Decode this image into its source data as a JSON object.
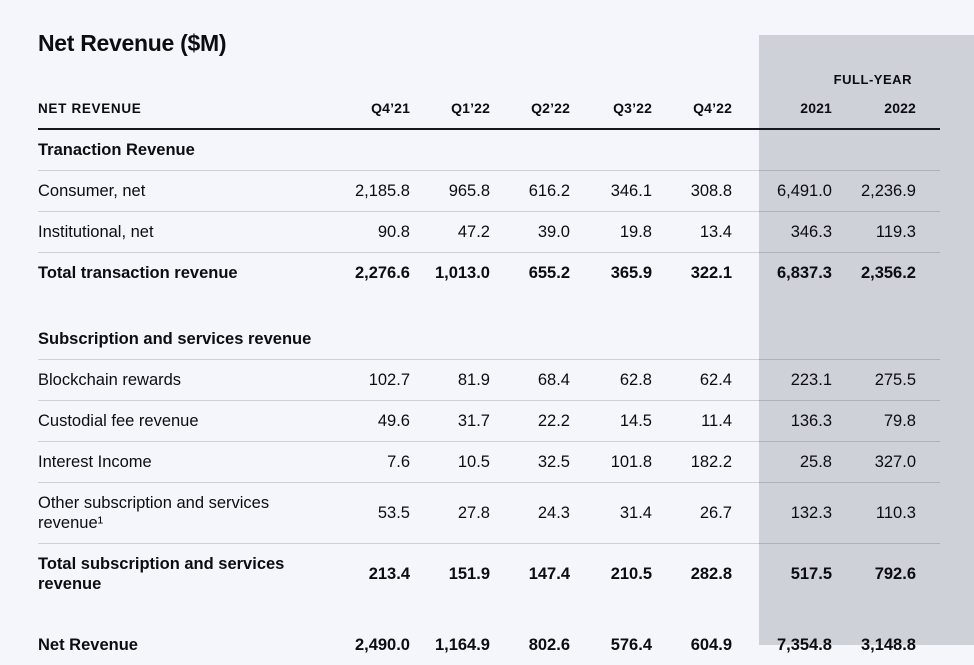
{
  "title": "Net Revenue ($M)",
  "colors": {
    "page_bg": "#f4f6fb",
    "full_year_band_bg": "#ced1d8",
    "text": "#0b0d12",
    "header_rule": "#16181c"
  },
  "table": {
    "label_header": "NET REVENUE",
    "group_header": "FULL-YEAR",
    "columns": [
      "Q4’21",
      "Q1’22",
      "Q2’22",
      "Q3’22",
      "Q4’22",
      "2021",
      "2022"
    ],
    "sections": [
      {
        "header": "Tranaction Revenue",
        "rows": [
          {
            "label": "Consumer, net",
            "emphasis": false,
            "values": [
              "2,185.8",
              "965.8",
              "616.2",
              "346.1",
              "308.8",
              "6,491.0",
              "2,236.9"
            ]
          },
          {
            "label": "Institutional, net",
            "emphasis": false,
            "values": [
              "90.8",
              "47.2",
              "39.0",
              "19.8",
              "13.4",
              "346.3",
              "119.3"
            ]
          },
          {
            "label": "Total transaction revenue",
            "emphasis": true,
            "values": [
              "2,276.6",
              "1,013.0",
              "655.2",
              "365.9",
              "322.1",
              "6,837.3",
              "2,356.2"
            ]
          }
        ]
      },
      {
        "header": "Subscription and services revenue",
        "rows": [
          {
            "label": "Blockchain rewards",
            "emphasis": false,
            "values": [
              "102.7",
              "81.9",
              "68.4",
              "62.8",
              "62.4",
              "223.1",
              "275.5"
            ]
          },
          {
            "label": "Custodial fee revenue",
            "emphasis": false,
            "values": [
              "49.6",
              "31.7",
              "22.2",
              "14.5",
              "11.4",
              "136.3",
              "79.8"
            ]
          },
          {
            "label": "Interest Income",
            "emphasis": false,
            "values": [
              "7.6",
              "10.5",
              "32.5",
              "101.8",
              "182.2",
              "25.8",
              "327.0"
            ]
          },
          {
            "label": "Other subscription and services revenue¹",
            "emphasis": false,
            "values": [
              "53.5",
              "27.8",
              "24.3",
              "31.4",
              "26.7",
              "132.3",
              "110.3"
            ]
          },
          {
            "label": "Total subscription and services revenue",
            "emphasis": true,
            "values": [
              "213.4",
              "151.9",
              "147.4",
              "210.5",
              "282.8",
              "517.5",
              "792.6"
            ]
          }
        ]
      },
      {
        "header": null,
        "rows": [
          {
            "label": "Net Revenue",
            "emphasis": true,
            "values": [
              "2,490.0",
              "1,164.9",
              "802.6",
              "576.4",
              "604.9",
              "7,354.8",
              "3,148.8"
            ]
          }
        ]
      }
    ]
  },
  "chart_data": {
    "type": "table",
    "title": "Net Revenue ($M)",
    "units": "USD millions",
    "column_group_label": "FULL-YEAR applies to last two columns",
    "columns": [
      "Q4'21",
      "Q1'22",
      "Q2'22",
      "Q3'22",
      "Q4'22",
      "FY 2021",
      "FY 2022"
    ],
    "series": [
      {
        "name": "Consumer, net",
        "values": [
          2185.8,
          965.8,
          616.2,
          346.1,
          308.8,
          6491.0,
          2236.9
        ]
      },
      {
        "name": "Institutional, net",
        "values": [
          90.8,
          47.2,
          39.0,
          19.8,
          13.4,
          346.3,
          119.3
        ]
      },
      {
        "name": "Total transaction revenue",
        "values": [
          2276.6,
          1013.0,
          655.2,
          365.9,
          322.1,
          6837.3,
          2356.2
        ]
      },
      {
        "name": "Blockchain rewards",
        "values": [
          102.7,
          81.9,
          68.4,
          62.8,
          62.4,
          223.1,
          275.5
        ]
      },
      {
        "name": "Custodial fee revenue",
        "values": [
          49.6,
          31.7,
          22.2,
          14.5,
          11.4,
          136.3,
          79.8
        ]
      },
      {
        "name": "Interest Income",
        "values": [
          7.6,
          10.5,
          32.5,
          101.8,
          182.2,
          25.8,
          327.0
        ]
      },
      {
        "name": "Other subscription and services revenue",
        "values": [
          53.5,
          27.8,
          24.3,
          31.4,
          26.7,
          132.3,
          110.3
        ]
      },
      {
        "name": "Total subscription and services revenue",
        "values": [
          213.4,
          151.9,
          147.4,
          210.5,
          282.8,
          517.5,
          792.6
        ]
      },
      {
        "name": "Net Revenue",
        "values": [
          2490.0,
          1164.9,
          802.6,
          576.4,
          604.9,
          7354.8,
          3148.8
        ]
      }
    ]
  }
}
